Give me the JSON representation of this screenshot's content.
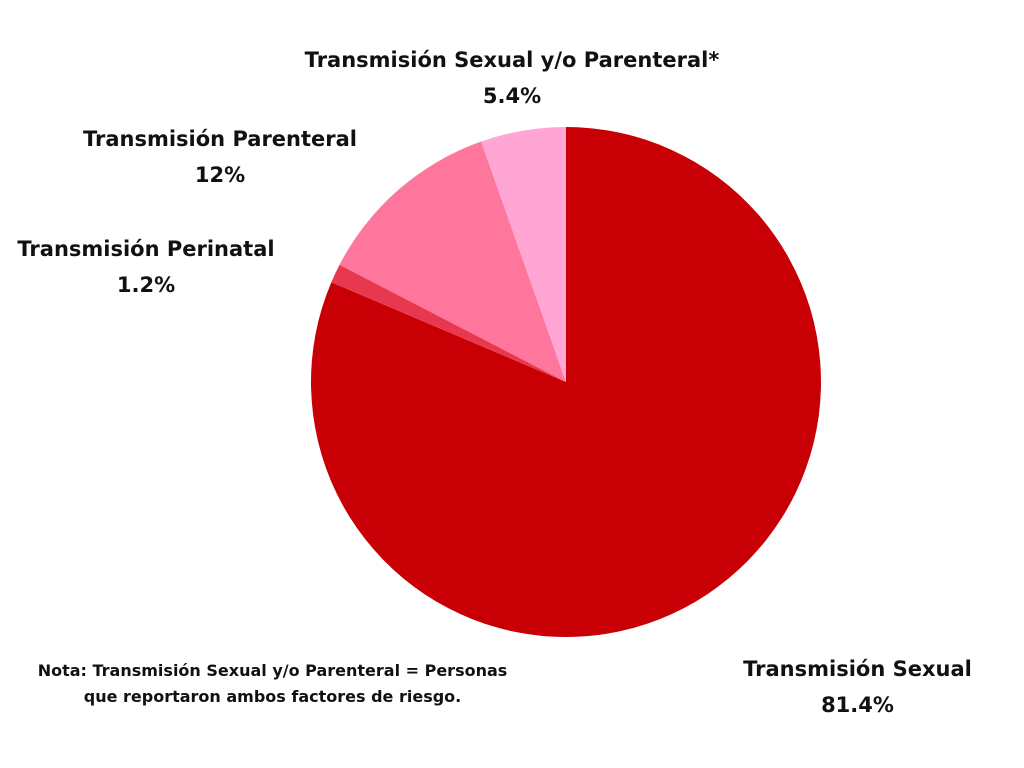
{
  "chart_data": {
    "type": "pie",
    "title": "",
    "slices": [
      {
        "label": "Transmisión Sexual",
        "value": 81.4,
        "display": "81.4%",
        "color": "#c80005"
      },
      {
        "label": "Transmisión Perinatal",
        "value": 1.2,
        "display": "1.2%",
        "color": "#e8384f"
      },
      {
        "label": "Transmisión Parenteral",
        "value": 12,
        "display": "12%",
        "color": "#ff769c"
      },
      {
        "label": "Transmisión Sexual y/o Parenteral*",
        "value": 5.4,
        "display": "5.4%",
        "color": "#ffa6d5"
      }
    ],
    "legend": "none",
    "labels_placement": "outside"
  },
  "note": {
    "line1": "Nota: Transmisión Sexual y/o Parenteral = Personas",
    "line2": "que reportaron ambos factores de riesgo."
  }
}
